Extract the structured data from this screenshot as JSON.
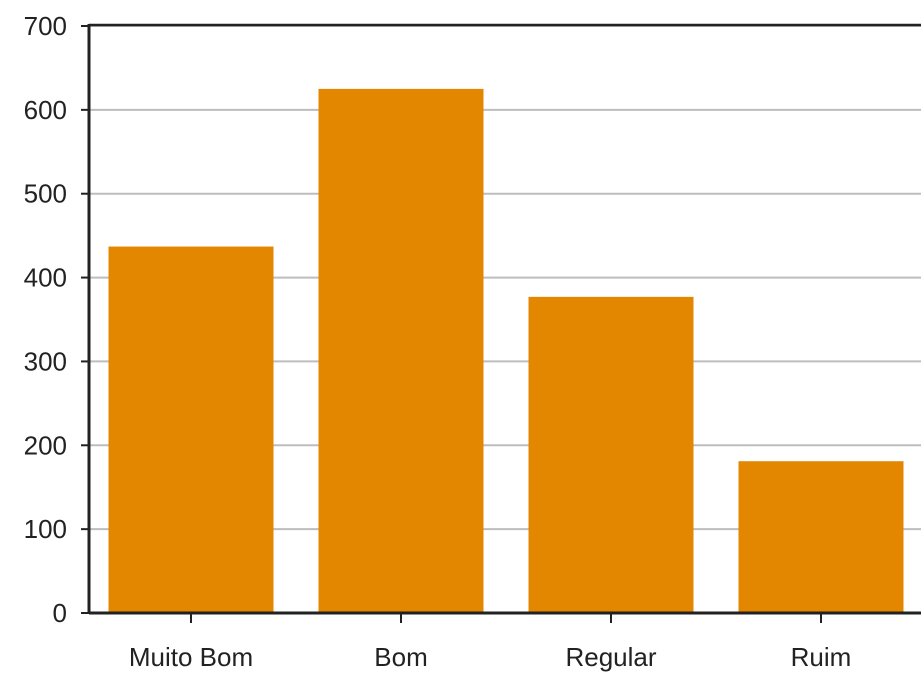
{
  "chart_data": {
    "type": "bar",
    "title": "",
    "xlabel": "",
    "ylabel": "",
    "categories": [
      "Muito Bom",
      "Bom",
      "Regular",
      "Ruim"
    ],
    "values": [
      437,
      625,
      377,
      181
    ],
    "ylim": [
      0,
      700
    ],
    "yticks": [
      0,
      100,
      200,
      300,
      400,
      500,
      600,
      700
    ],
    "grid": true,
    "legend": "none",
    "colors": {
      "bar": "#E38600",
      "grid": "#BDBDBD",
      "axis": "#222222",
      "text": "#222222"
    }
  }
}
